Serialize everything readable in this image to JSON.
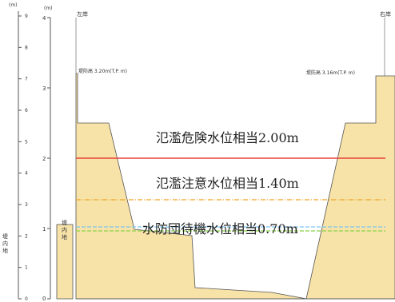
{
  "colors": {
    "bank_fill": "#f7e2a8",
    "bank_stroke": "#555555",
    "danger_line": "#e8413a",
    "caution_line": "#f0a524",
    "standby_line_a": "#7cc7ef",
    "standby_line_b": "#8bd14a",
    "river_bed": "#ffffff"
  },
  "axes": {
    "left_outer": {
      "unit": "(m)",
      "ticks": [
        "9",
        "8",
        "7",
        "6",
        "5",
        "4",
        "3",
        "2",
        "1",
        "0"
      ]
    },
    "main": {
      "unit": "(m)",
      "ticks": [
        "4",
        "3",
        "2",
        "1",
        "0"
      ]
    }
  },
  "labels": {
    "left_bank": "左岸",
    "right_bank": "右岸",
    "left_levee_height": "堤防高 3.20m(T.P.  m)",
    "right_levee_height": "堤防高 3.16m(T.P.  m)",
    "inner_land_left": [
      "堤",
      "内",
      "地"
    ],
    "inner_land_far_left": [
      "堤",
      "内",
      "地"
    ]
  },
  "water_levels": [
    {
      "name": "danger",
      "label": "氾濫危険水位相当2.00m",
      "value": 2.0
    },
    {
      "name": "caution",
      "label": "氾濫注意水位相当1.40m",
      "value": 1.4
    },
    {
      "name": "standby",
      "label": "水防団待機水位相当0.70m",
      "value": 0.7
    }
  ]
}
